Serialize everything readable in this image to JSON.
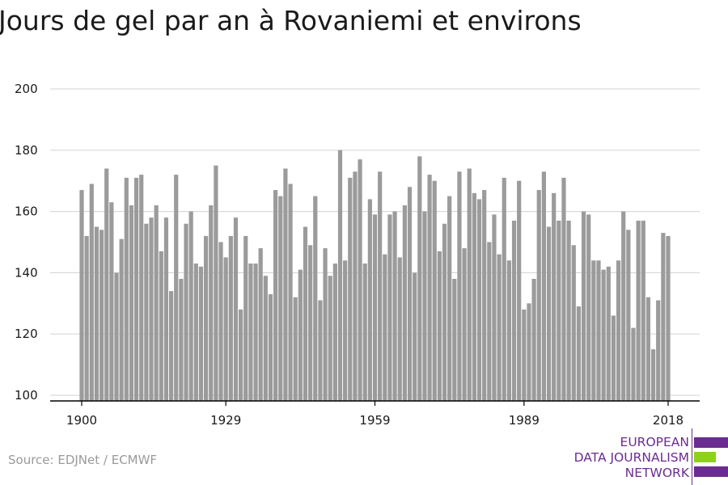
{
  "title": "Jours de gel par an à Rovaniemi et environs",
  "source": "Source: EDJNet / ECMWF",
  "logo": {
    "lines": [
      "EUROPEAN",
      "DATA JOURNALISM",
      "NETWORK"
    ],
    "colors": {
      "purple": "#6b2c91",
      "green": "#8ed11c"
    }
  },
  "colors": {
    "bar": "#9b9b9b",
    "grid": "#d9d9d9",
    "axis": "#000000"
  },
  "chart_data": {
    "type": "bar",
    "title": "Jours de gel par an à Rovaniemi et environs",
    "xlabel": "",
    "ylabel": "",
    "ylim": [
      100,
      200
    ],
    "yticks": [
      100,
      120,
      140,
      160,
      180,
      200
    ],
    "xtick_labels": [
      "1900",
      "1929",
      "1959",
      "1989",
      "2018"
    ],
    "grid": true,
    "x": [
      1900,
      1901,
      1902,
      1903,
      1904,
      1905,
      1906,
      1907,
      1908,
      1909,
      1910,
      1911,
      1912,
      1913,
      1914,
      1915,
      1916,
      1917,
      1918,
      1919,
      1920,
      1921,
      1922,
      1923,
      1924,
      1925,
      1926,
      1927,
      1928,
      1929,
      1930,
      1931,
      1932,
      1933,
      1934,
      1935,
      1936,
      1937,
      1938,
      1939,
      1940,
      1941,
      1942,
      1943,
      1944,
      1945,
      1946,
      1947,
      1948,
      1949,
      1950,
      1951,
      1952,
      1953,
      1954,
      1955,
      1956,
      1957,
      1958,
      1959,
      1960,
      1961,
      1962,
      1963,
      1964,
      1965,
      1966,
      1967,
      1968,
      1969,
      1970,
      1971,
      1972,
      1973,
      1974,
      1975,
      1976,
      1977,
      1978,
      1979,
      1980,
      1981,
      1982,
      1983,
      1984,
      1985,
      1986,
      1987,
      1988,
      1989,
      1990,
      1991,
      1992,
      1993,
      1994,
      1995,
      1996,
      1997,
      1998,
      1999,
      2000,
      2001,
      2002,
      2003,
      2004,
      2005,
      2006,
      2007,
      2008,
      2009,
      2010,
      2011,
      2012,
      2013,
      2014,
      2015,
      2016,
      2017,
      2018
    ],
    "values": [
      167,
      152,
      169,
      155,
      154,
      174,
      163,
      140,
      151,
      171,
      162,
      171,
      172,
      156,
      158,
      162,
      147,
      158,
      134,
      172,
      138,
      156,
      160,
      143,
      142,
      152,
      162,
      175,
      150,
      145,
      152,
      158,
      128,
      152,
      143,
      143,
      148,
      139,
      133,
      167,
      165,
      174,
      169,
      132,
      141,
      155,
      149,
      165,
      131,
      148,
      139,
      143,
      180,
      144,
      171,
      173,
      177,
      143,
      164,
      159,
      173,
      146,
      159,
      160,
      145,
      162,
      168,
      140,
      178,
      160,
      172,
      170,
      147,
      156,
      165,
      138,
      173,
      148,
      174,
      166,
      164,
      167,
      150,
      159,
      146,
      171,
      144,
      157,
      170,
      128,
      130,
      138,
      167,
      173,
      155,
      166,
      157,
      171,
      157,
      149,
      129,
      160,
      159,
      144,
      144,
      141,
      142,
      126,
      144,
      160,
      154,
      122,
      157,
      157,
      132,
      115,
      131,
      153,
      152
    ]
  }
}
